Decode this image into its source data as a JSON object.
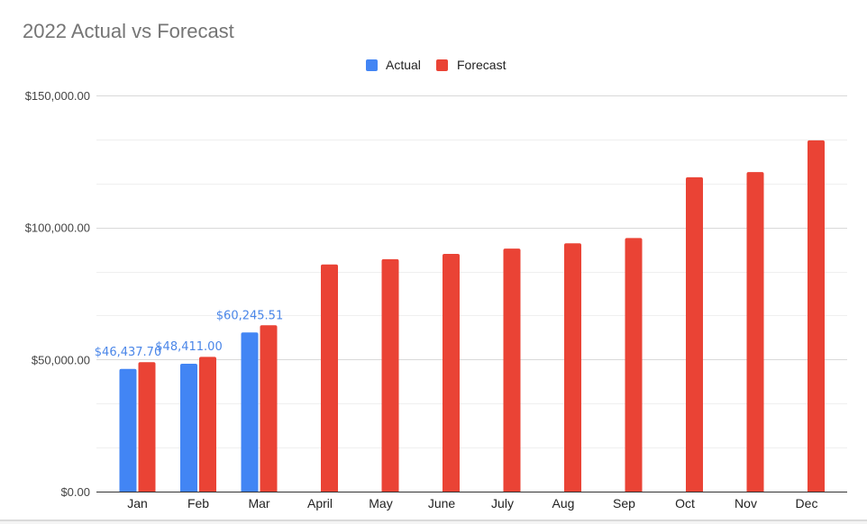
{
  "chart_data": {
    "type": "bar",
    "title": "2022 Actual vs Forecast",
    "xlabel": "",
    "ylabel": "",
    "ylim": [
      0,
      150000
    ],
    "grid": true,
    "legend_position": "top",
    "yticks": [
      "$0.00",
      "$50,000.00",
      "$100,000.00",
      "$150,000.00"
    ],
    "ytick_values": [
      0,
      50000,
      100000,
      150000
    ],
    "categories": [
      "Jan",
      "Feb",
      "Mar",
      "April",
      "May",
      "June",
      "July",
      "Aug",
      "Sep",
      "Oct",
      "Nov",
      "Dec"
    ],
    "series": [
      {
        "name": "Actual",
        "color": "#4285f4",
        "values": [
          46437.7,
          48411.0,
          60245.51,
          null,
          null,
          null,
          null,
          null,
          null,
          null,
          null,
          null
        ],
        "data_labels": [
          "$46,437.70",
          "$48,411.00",
          "$60,245.51",
          null,
          null,
          null,
          null,
          null,
          null,
          null,
          null,
          null
        ]
      },
      {
        "name": "Forecast",
        "color": "#ea4335",
        "values": [
          49000,
          51000,
          63000,
          86000,
          88000,
          90000,
          92000,
          94000,
          96000,
          119000,
          121000,
          133000
        ]
      }
    ],
    "data_label_color": "#4a86e8"
  }
}
